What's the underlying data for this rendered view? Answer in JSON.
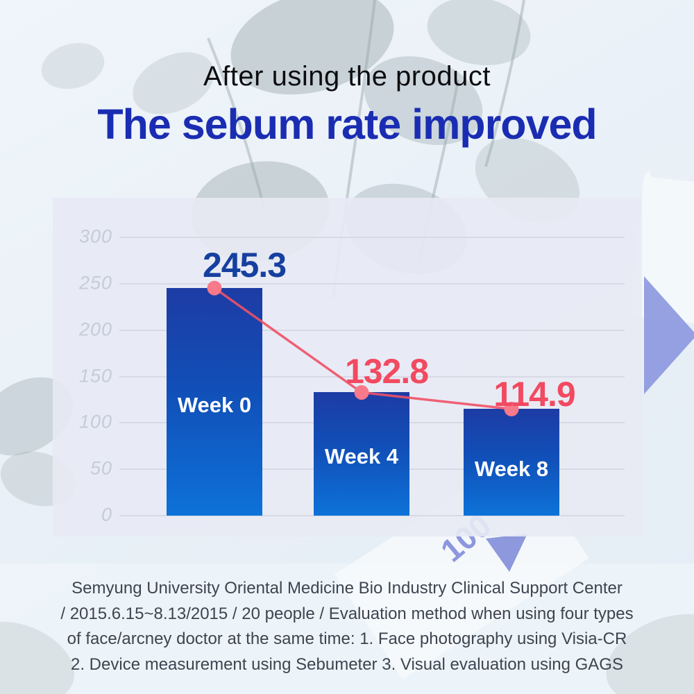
{
  "header": {
    "line1": "After using the product",
    "line2": "The sebum rate improved"
  },
  "chart_data": {
    "type": "bar",
    "title": "The sebum rate improved",
    "categories": [
      "Week 0",
      "Week 4",
      "Week 8"
    ],
    "values": [
      245.3,
      132.8,
      114.9
    ],
    "yticks": [
      "300",
      "250",
      "200",
      "150",
      "100",
      "50",
      "0"
    ],
    "ylim": [
      0,
      300
    ],
    "grid": true,
    "legend": "none",
    "overlay": "line-with-dots",
    "colors": {
      "bar_gradient_top": "#1d3ca4",
      "bar_gradient_bottom": "#0d72d8",
      "trend_line": "#ef5168",
      "trend_dot": "#f8798a",
      "value_label_week0": "#16409f",
      "value_label_week4_8": "#f24a61",
      "tick_label": "#c7cbd9",
      "panel_background": "#e8eaf4"
    }
  },
  "header_colors": {
    "title_black": "#0d0d10",
    "title_blue": "#1a2db2"
  },
  "footer": {
    "lines": [
      "Semyung University Oriental Medicine Bio Industry Clinical Support Center",
      "/ 2015.6.15~8.13/2015 / 20 people / Evaluation method when using four types",
      "of face/arcney doctor at the same time: 1. Face photography using Visia-CR",
      "2. Device measurement using Sebumeter 3. Visual evaluation using GAGS"
    ]
  },
  "background": {
    "faint_label": "100"
  }
}
